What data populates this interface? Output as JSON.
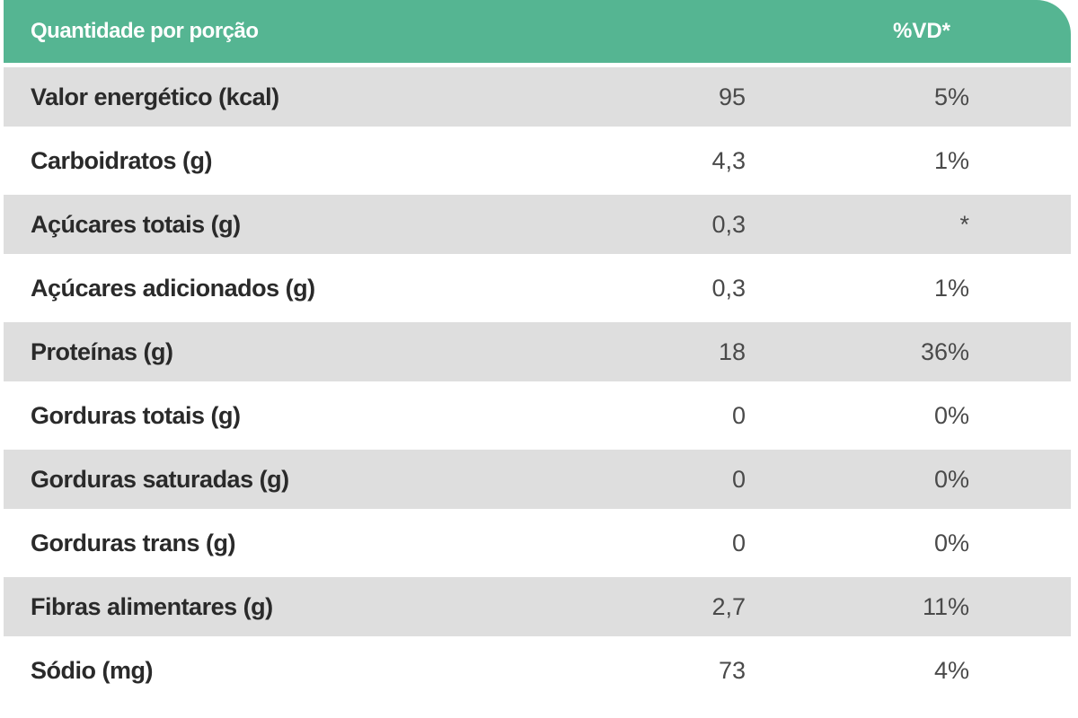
{
  "header": {
    "quantity_label": "Quantidade por porção",
    "vd_label": "%VD*"
  },
  "rows": [
    {
      "label": "Valor energético (kcal)",
      "amount": "95",
      "vd": "5%"
    },
    {
      "label": "Carboidratos (g)",
      "amount": "4,3",
      "vd": "1%"
    },
    {
      "label": "Açúcares totais (g)",
      "amount": "0,3",
      "vd": "*"
    },
    {
      "label": "Açúcares adicionados (g)",
      "amount": "0,3",
      "vd": "1%"
    },
    {
      "label": "Proteínas (g)",
      "amount": "18",
      "vd": "36%"
    },
    {
      "label": "Gorduras totais (g)",
      "amount": "0",
      "vd": "0%"
    },
    {
      "label": "Gorduras saturadas (g)",
      "amount": "0",
      "vd": "0%"
    },
    {
      "label": "Gorduras trans (g)",
      "amount": "0",
      "vd": "0%"
    },
    {
      "label": "Fibras alimentares (g)",
      "amount": "2,7",
      "vd": "11%"
    },
    {
      "label": "Sódio (mg)",
      "amount": "73",
      "vd": "4%"
    }
  ],
  "colors": {
    "header_bg": "#55b592",
    "shaded_row": "#dedede",
    "white_row": "#ffffff"
  }
}
